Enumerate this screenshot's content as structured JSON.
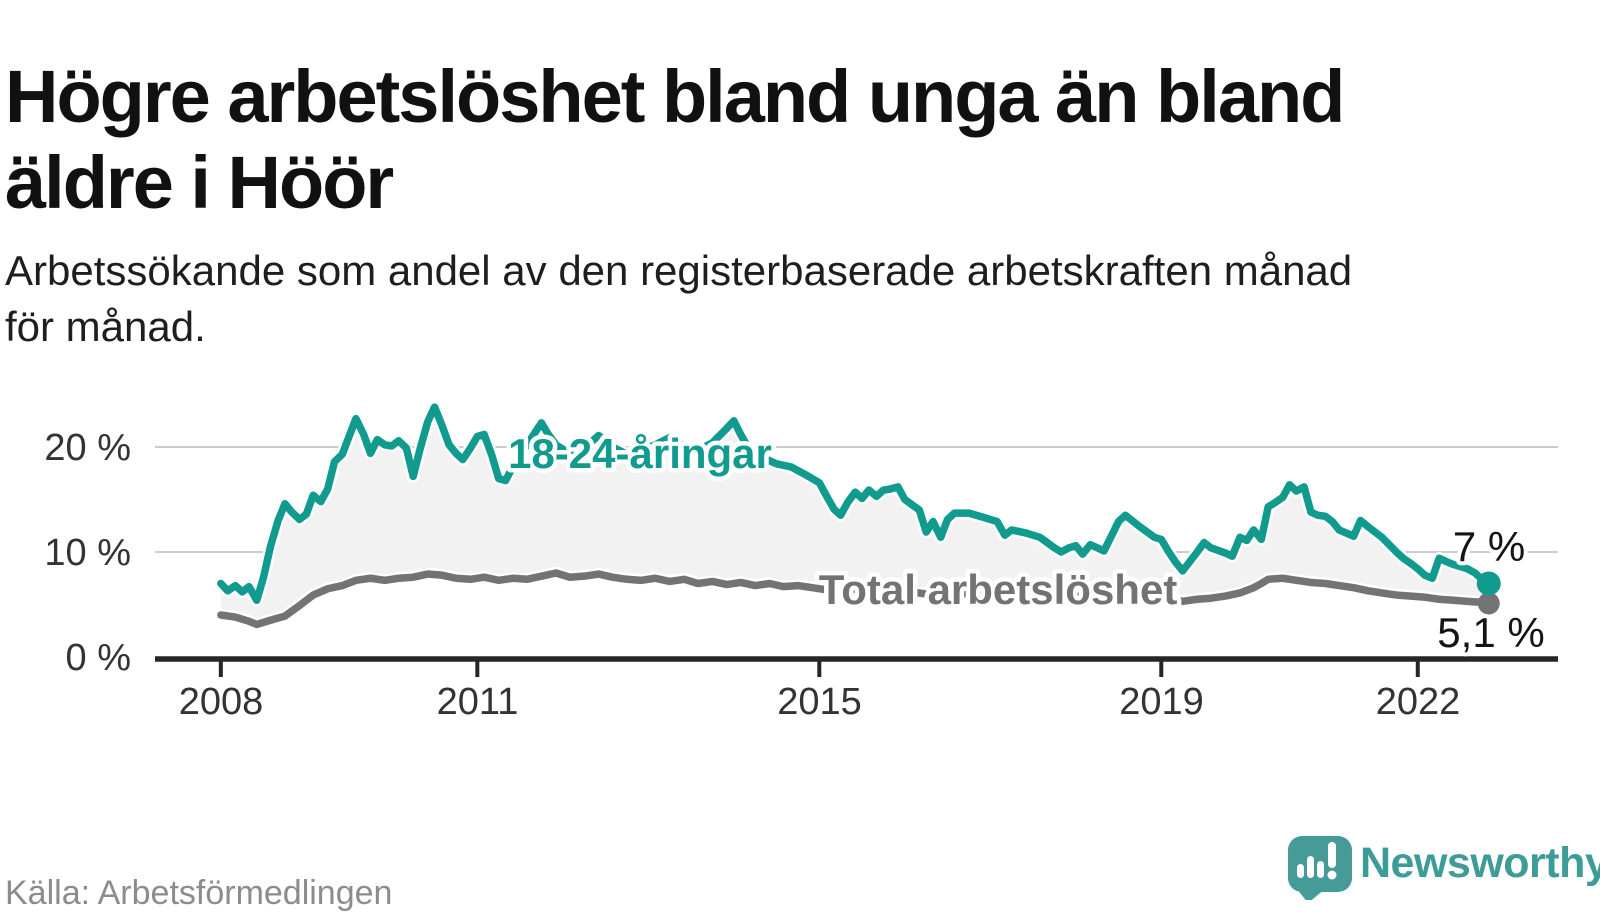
{
  "chart_data": {
    "type": "line",
    "title": "Högre arbetslöshet bland unga än bland\näldre i Höör",
    "subtitle": "Arbetssökande som andel av den registerbaserade arbetskraften månad\nför månad.",
    "source": "Källa: Arbetsförmedlingen",
    "unit": "%",
    "xlim": [
      2007.23,
      2023.64
    ],
    "ylim": [
      0,
      25.4
    ],
    "grid": "horizontal",
    "legend_position": "inline-labels",
    "x_ticks": [
      2008,
      2011,
      2015,
      2019,
      2022
    ],
    "x_tick_labels": [
      "2008",
      "2011",
      "2015",
      "2019",
      "2022"
    ],
    "y_ticks": [
      0,
      10,
      20
    ],
    "y_tick_labels": [
      "0 %",
      "10 %",
      "20 %"
    ],
    "series": [
      {
        "name": "18-24-åringar",
        "color": "#119a8e",
        "end_label": "7 %",
        "end_value": 7.0,
        "points": [
          [
            2008.0,
            7.0
          ],
          [
            2008.08,
            6.3
          ],
          [
            2008.17,
            6.8
          ],
          [
            2008.25,
            6.2
          ],
          [
            2008.33,
            6.7
          ],
          [
            2008.42,
            5.4
          ],
          [
            2008.5,
            7.6
          ],
          [
            2008.58,
            10.5
          ],
          [
            2008.67,
            13.0
          ],
          [
            2008.75,
            14.6
          ],
          [
            2008.83,
            13.8
          ],
          [
            2008.92,
            13.1
          ],
          [
            2009.0,
            13.6
          ],
          [
            2009.08,
            15.4
          ],
          [
            2009.17,
            14.8
          ],
          [
            2009.25,
            16.0
          ],
          [
            2009.33,
            18.6
          ],
          [
            2009.42,
            19.3
          ],
          [
            2009.5,
            21.0
          ],
          [
            2009.58,
            22.7
          ],
          [
            2009.67,
            21.2
          ],
          [
            2009.75,
            19.4
          ],
          [
            2009.83,
            20.7
          ],
          [
            2009.92,
            20.2
          ],
          [
            2010.0,
            20.1
          ],
          [
            2010.08,
            20.6
          ],
          [
            2010.17,
            19.9
          ],
          [
            2010.25,
            17.2
          ],
          [
            2010.33,
            19.8
          ],
          [
            2010.42,
            22.4
          ],
          [
            2010.5,
            23.8
          ],
          [
            2010.58,
            22.2
          ],
          [
            2010.67,
            20.2
          ],
          [
            2010.75,
            19.4
          ],
          [
            2010.83,
            18.8
          ],
          [
            2010.92,
            19.9
          ],
          [
            2011.0,
            21.0
          ],
          [
            2011.08,
            21.2
          ],
          [
            2011.17,
            19.2
          ],
          [
            2011.25,
            17.0
          ],
          [
            2011.33,
            16.8
          ],
          [
            2011.42,
            18.2
          ],
          [
            2011.58,
            20.2
          ],
          [
            2011.75,
            22.3
          ],
          [
            2011.83,
            21.2
          ],
          [
            2011.92,
            20.2
          ],
          [
            2012.08,
            19.4
          ],
          [
            2012.25,
            19.9
          ],
          [
            2012.42,
            21.1
          ],
          [
            2012.58,
            20.0
          ],
          [
            2012.75,
            19.3
          ],
          [
            2012.92,
            19.7
          ],
          [
            2013.08,
            20.2
          ],
          [
            2013.25,
            20.9
          ],
          [
            2013.42,
            20.1
          ],
          [
            2013.58,
            19.7
          ],
          [
            2013.75,
            20.4
          ],
          [
            2013.92,
            21.8
          ],
          [
            2014.0,
            22.5
          ],
          [
            2014.08,
            21.2
          ],
          [
            2014.17,
            19.9
          ],
          [
            2014.33,
            19.0
          ],
          [
            2014.5,
            18.4
          ],
          [
            2014.67,
            18.1
          ],
          [
            2014.83,
            17.4
          ],
          [
            2015.0,
            16.6
          ],
          [
            2015.08,
            15.4
          ],
          [
            2015.17,
            14.1
          ],
          [
            2015.25,
            13.5
          ],
          [
            2015.33,
            14.7
          ],
          [
            2015.42,
            15.7
          ],
          [
            2015.5,
            15.1
          ],
          [
            2015.58,
            15.9
          ],
          [
            2015.67,
            15.3
          ],
          [
            2015.75,
            15.9
          ],
          [
            2015.83,
            16.0
          ],
          [
            2015.92,
            16.2
          ],
          [
            2016.0,
            15.0
          ],
          [
            2016.17,
            14.0
          ],
          [
            2016.25,
            11.9
          ],
          [
            2016.33,
            12.9
          ],
          [
            2016.42,
            11.4
          ],
          [
            2016.5,
            13.1
          ],
          [
            2016.58,
            13.7
          ],
          [
            2016.75,
            13.7
          ],
          [
            2016.92,
            13.3
          ],
          [
            2017.08,
            12.9
          ],
          [
            2017.17,
            11.6
          ],
          [
            2017.25,
            12.1
          ],
          [
            2017.42,
            11.8
          ],
          [
            2017.58,
            11.4
          ],
          [
            2017.75,
            10.4
          ],
          [
            2017.83,
            10.0
          ],
          [
            2017.92,
            10.4
          ],
          [
            2018.0,
            10.6
          ],
          [
            2018.08,
            9.8
          ],
          [
            2018.17,
            10.7
          ],
          [
            2018.33,
            10.1
          ],
          [
            2018.5,
            12.9
          ],
          [
            2018.58,
            13.5
          ],
          [
            2018.75,
            12.4
          ],
          [
            2018.92,
            11.4
          ],
          [
            2019.0,
            11.2
          ],
          [
            2019.08,
            10.1
          ],
          [
            2019.17,
            9.0
          ],
          [
            2019.25,
            8.2
          ],
          [
            2019.42,
            10.0
          ],
          [
            2019.5,
            10.9
          ],
          [
            2019.58,
            10.4
          ],
          [
            2019.75,
            9.9
          ],
          [
            2019.83,
            9.6
          ],
          [
            2019.92,
            11.4
          ],
          [
            2020.0,
            11.1
          ],
          [
            2020.08,
            12.1
          ],
          [
            2020.17,
            11.2
          ],
          [
            2020.25,
            14.3
          ],
          [
            2020.33,
            14.7
          ],
          [
            2020.42,
            15.2
          ],
          [
            2020.5,
            16.4
          ],
          [
            2020.58,
            15.8
          ],
          [
            2020.67,
            16.2
          ],
          [
            2020.75,
            13.8
          ],
          [
            2020.83,
            13.5
          ],
          [
            2020.92,
            13.4
          ],
          [
            2021.0,
            12.9
          ],
          [
            2021.08,
            12.1
          ],
          [
            2021.25,
            11.5
          ],
          [
            2021.33,
            13.0
          ],
          [
            2021.42,
            12.4
          ],
          [
            2021.58,
            11.4
          ],
          [
            2021.75,
            10.0
          ],
          [
            2021.83,
            9.4
          ],
          [
            2021.92,
            8.9
          ],
          [
            2022.0,
            8.4
          ],
          [
            2022.08,
            7.8
          ],
          [
            2022.17,
            7.5
          ],
          [
            2022.25,
            9.4
          ],
          [
            2022.33,
            9.1
          ],
          [
            2022.42,
            8.8
          ],
          [
            2022.58,
            8.4
          ],
          [
            2022.67,
            8.0
          ],
          [
            2022.75,
            7.4
          ],
          [
            2022.83,
            7.0
          ]
        ]
      },
      {
        "name": "Total arbetslöshet",
        "color": "#737373",
        "end_label": "5,1 %",
        "end_value": 5.1,
        "points": [
          [
            2008.0,
            4.0
          ],
          [
            2008.17,
            3.8
          ],
          [
            2008.33,
            3.4
          ],
          [
            2008.42,
            3.1
          ],
          [
            2008.58,
            3.5
          ],
          [
            2008.75,
            3.9
          ],
          [
            2008.92,
            4.9
          ],
          [
            2009.08,
            5.9
          ],
          [
            2009.25,
            6.5
          ],
          [
            2009.42,
            6.8
          ],
          [
            2009.58,
            7.3
          ],
          [
            2009.75,
            7.5
          ],
          [
            2009.92,
            7.3
          ],
          [
            2010.08,
            7.5
          ],
          [
            2010.25,
            7.6
          ],
          [
            2010.42,
            7.9
          ],
          [
            2010.58,
            7.8
          ],
          [
            2010.75,
            7.5
          ],
          [
            2010.92,
            7.4
          ],
          [
            2011.08,
            7.6
          ],
          [
            2011.25,
            7.3
          ],
          [
            2011.42,
            7.5
          ],
          [
            2011.58,
            7.4
          ],
          [
            2011.75,
            7.7
          ],
          [
            2011.92,
            8.0
          ],
          [
            2012.08,
            7.6
          ],
          [
            2012.25,
            7.7
          ],
          [
            2012.42,
            7.9
          ],
          [
            2012.58,
            7.6
          ],
          [
            2012.75,
            7.4
          ],
          [
            2012.92,
            7.3
          ],
          [
            2013.08,
            7.5
          ],
          [
            2013.25,
            7.2
          ],
          [
            2013.42,
            7.4
          ],
          [
            2013.58,
            7.0
          ],
          [
            2013.75,
            7.2
          ],
          [
            2013.92,
            6.9
          ],
          [
            2014.08,
            7.1
          ],
          [
            2014.25,
            6.8
          ],
          [
            2014.42,
            7.0
          ],
          [
            2014.58,
            6.7
          ],
          [
            2014.75,
            6.8
          ],
          [
            2014.92,
            6.6
          ],
          [
            2015.08,
            6.4
          ],
          [
            2015.25,
            6.2
          ],
          [
            2015.42,
            6.5
          ],
          [
            2015.58,
            6.2
          ],
          [
            2015.75,
            6.4
          ],
          [
            2015.92,
            6.1
          ],
          [
            2016.08,
            6.2
          ],
          [
            2016.25,
            6.0
          ],
          [
            2016.42,
            6.2
          ],
          [
            2016.58,
            5.9
          ],
          [
            2016.75,
            6.1
          ],
          [
            2016.92,
            5.9
          ],
          [
            2017.08,
            6.0
          ],
          [
            2017.25,
            5.8
          ],
          [
            2017.42,
            6.0
          ],
          [
            2017.58,
            5.8
          ],
          [
            2017.75,
            5.9
          ],
          [
            2017.92,
            5.7
          ],
          [
            2018.08,
            5.8
          ],
          [
            2018.25,
            5.6
          ],
          [
            2018.42,
            5.7
          ],
          [
            2018.58,
            5.5
          ],
          [
            2018.75,
            5.6
          ],
          [
            2018.92,
            5.4
          ],
          [
            2019.08,
            5.5
          ],
          [
            2019.25,
            5.3
          ],
          [
            2019.42,
            5.5
          ],
          [
            2019.58,
            5.6
          ],
          [
            2019.75,
            5.8
          ],
          [
            2019.92,
            6.1
          ],
          [
            2020.08,
            6.6
          ],
          [
            2020.17,
            7.0
          ],
          [
            2020.25,
            7.4
          ],
          [
            2020.42,
            7.5
          ],
          [
            2020.58,
            7.3
          ],
          [
            2020.75,
            7.1
          ],
          [
            2020.92,
            7.0
          ],
          [
            2021.08,
            6.8
          ],
          [
            2021.25,
            6.6
          ],
          [
            2021.42,
            6.3
          ],
          [
            2021.58,
            6.1
          ],
          [
            2021.75,
            5.9
          ],
          [
            2021.92,
            5.8
          ],
          [
            2022.08,
            5.7
          ],
          [
            2022.25,
            5.5
          ],
          [
            2022.42,
            5.4
          ],
          [
            2022.58,
            5.3
          ],
          [
            2022.75,
            5.2
          ],
          [
            2022.83,
            5.1
          ]
        ]
      }
    ],
    "colors": {
      "fill_between": "#f2f2f2",
      "grid": "#cccccc",
      "axis": "#262626",
      "tick_text": "#333333",
      "title_text": "#111111",
      "source_text": "#8c8c8c"
    }
  },
  "logo": {
    "brand": "Newsworthy",
    "mark": "speech-bubble-bar-chart-exclamation",
    "mark_color": "#449b97",
    "text_color": "#3e9c98"
  }
}
